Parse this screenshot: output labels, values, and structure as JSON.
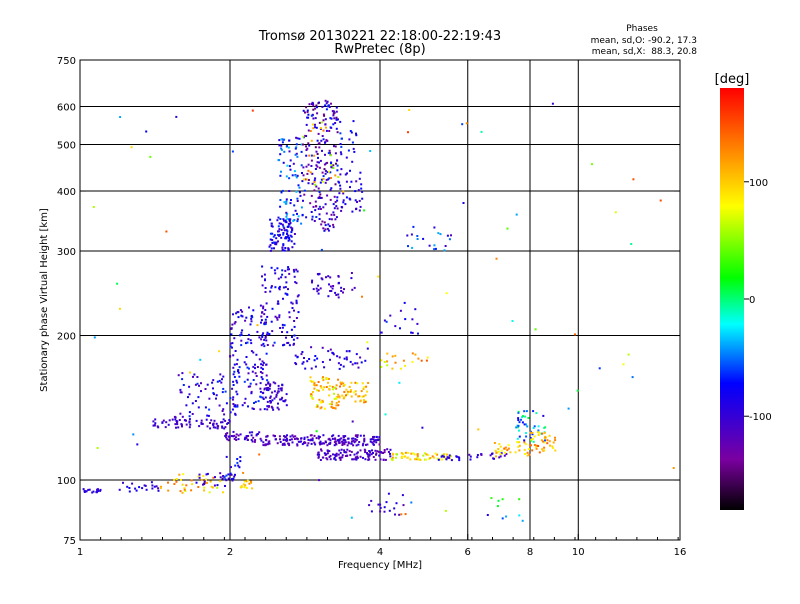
{
  "chart_data": {
    "type": "scatter",
    "title": "Tromsø 20130221 22:18:00-22:19:43",
    "subtitle": "RwPretec (8p)",
    "info": {
      "heading": "Phases",
      "line_o": "mean, sd,O: -90.2, 17.3",
      "line_x": "mean, sd,X:  88.3, 20.8"
    },
    "xlabel": "Frequency [MHz]",
    "ylabel": "Stationary phase Virtual Height [km]",
    "x_scale": "log",
    "y_scale": "log",
    "xlim": [
      1,
      16
    ],
    "ylim": [
      75,
      750
    ],
    "x_ticks": [
      1,
      2,
      4,
      6,
      8,
      10,
      16
    ],
    "x_tick_labels": [
      "1",
      "2",
      "4",
      "6",
      "8",
      "10",
      "16"
    ],
    "x_grid": [
      2,
      4,
      6,
      8,
      10
    ],
    "y_ticks": [
      75,
      100,
      200,
      300,
      400,
      500,
      600,
      750
    ],
    "y_tick_labels": [
      "75",
      "100",
      "200",
      "300",
      "400",
      "500",
      "600",
      "750"
    ],
    "y_grid": [
      100,
      200,
      300,
      400,
      500,
      600
    ],
    "colorbar": {
      "label": "[deg]",
      "range": [
        -180,
        180
      ],
      "ticks": [
        100,
        0,
        -100
      ],
      "tick_labels": [
        "100",
        "0",
        "-100"
      ]
    },
    "clusters": [
      {
        "x": [
          1.0,
          1.1
        ],
        "y": [
          94,
          96
        ],
        "phase": [
          -100,
          -90
        ],
        "n": 18
      },
      {
        "x": [
          1.2,
          1.45
        ],
        "y": [
          94,
          99
        ],
        "phase": [
          -110,
          -70
        ],
        "n": 20
      },
      {
        "x": [
          1.45,
          1.95
        ],
        "y": [
          94,
          103
        ],
        "phase": [
          60,
          140
        ],
        "n": 40
      },
      {
        "x": [
          1.7,
          2.05
        ],
        "y": [
          97,
          104
        ],
        "phase": [
          -120,
          -80
        ],
        "n": 25
      },
      {
        "x": [
          1.95,
          2.1
        ],
        "y": [
          100,
          115
        ],
        "phase": [
          -110,
          -60
        ],
        "n": 15
      },
      {
        "x": [
          2.1,
          2.25
        ],
        "y": [
          96,
          100
        ],
        "phase": [
          80,
          150
        ],
        "n": 14
      },
      {
        "x": [
          1.4,
          2.0
        ],
        "y": [
          128,
          134
        ],
        "phase": [
          -120,
          -90
        ],
        "n": 70
      },
      {
        "x": [
          1.55,
          2.1
        ],
        "y": [
          135,
          170
        ],
        "phase": [
          -120,
          -60
        ],
        "n": 70
      },
      {
        "x": [
          1.95,
          2.3
        ],
        "y": [
          120,
          126
        ],
        "phase": [
          -130,
          -90
        ],
        "n": 40
      },
      {
        "x": [
          2.0,
          2.4
        ],
        "y": [
          140,
          230
        ],
        "phase": [
          -120,
          -60
        ],
        "n": 140
      },
      {
        "x": [
          2.3,
          2.6
        ],
        "y": [
          140,
          160
        ],
        "phase": [
          -120,
          -90
        ],
        "n": 60
      },
      {
        "x": [
          2.3,
          2.75
        ],
        "y": [
          190,
          280
        ],
        "phase": [
          -120,
          -60
        ],
        "n": 110
      },
      {
        "x": [
          2.4,
          2.7
        ],
        "y": [
          300,
          350
        ],
        "phase": [
          -110,
          -60
        ],
        "n": 90
      },
      {
        "x": [
          2.5,
          2.8
        ],
        "y": [
          340,
          520
        ],
        "phase": [
          -110,
          -30
        ],
        "n": 90
      },
      {
        "x": [
          2.8,
          3.3
        ],
        "y": [
          330,
          620
        ],
        "phase": [
          -150,
          -60
        ],
        "n": 220
      },
      {
        "x": [
          2.8,
          3.3
        ],
        "y": [
          400,
          560
        ],
        "phase": [
          40,
          140
        ],
        "n": 25
      },
      {
        "x": [
          2.9,
          3.6
        ],
        "y": [
          240,
          270
        ],
        "phase": [
          -120,
          -90
        ],
        "n": 40
      },
      {
        "x": [
          3.3,
          3.7
        ],
        "y": [
          360,
          450
        ],
        "phase": [
          -120,
          -70
        ],
        "n": 40
      },
      {
        "x": [
          3.3,
          3.6
        ],
        "y": [
          460,
          560
        ],
        "phase": [
          -100,
          -60
        ],
        "n": 20
      },
      {
        "x": [
          2.3,
          4.0
        ],
        "y": [
          118,
          124
        ],
        "phase": [
          -130,
          -90
        ],
        "n": 190
      },
      {
        "x": [
          3.0,
          4.2
        ],
        "y": [
          110,
          116
        ],
        "phase": [
          -130,
          -90
        ],
        "n": 110
      },
      {
        "x": [
          4.2,
          5.6
        ],
        "y": [
          110,
          114
        ],
        "phase": [
          50,
          130
        ],
        "n": 60
      },
      {
        "x": [
          5.2,
          5.8
        ],
        "y": [
          110,
          113
        ],
        "phase": [
          -110,
          -80
        ],
        "n": 15
      },
      {
        "x": [
          2.9,
          3.3
        ],
        "y": [
          140,
          165
        ],
        "phase": [
          60,
          140
        ],
        "n": 70
      },
      {
        "x": [
          3.3,
          3.8
        ],
        "y": [
          145,
          160
        ],
        "phase": [
          70,
          140
        ],
        "n": 50
      },
      {
        "x": [
          2.7,
          3.8
        ],
        "y": [
          170,
          190
        ],
        "phase": [
          -120,
          -70
        ],
        "n": 50
      },
      {
        "x": [
          4.0,
          5.0
        ],
        "y": [
          170,
          185
        ],
        "phase": [
          60,
          150
        ],
        "n": 20
      },
      {
        "x": [
          4.0,
          4.8
        ],
        "y": [
          190,
          230
        ],
        "phase": [
          -110,
          -60
        ],
        "n": 15
      },
      {
        "x": [
          4.5,
          5.6
        ],
        "y": [
          300,
          340
        ],
        "phase": [
          -120,
          -30
        ],
        "n": 20
      },
      {
        "x": [
          6.0,
          7.2
        ],
        "y": [
          110,
          114
        ],
        "phase": [
          -120,
          -90
        ],
        "n": 18
      },
      {
        "x": [
          6.8,
          8.0
        ],
        "y": [
          112,
          120
        ],
        "phase": [
          70,
          140
        ],
        "n": 35
      },
      {
        "x": [
          7.5,
          8.6
        ],
        "y": [
          120,
          140
        ],
        "phase": [
          -90,
          10
        ],
        "n": 45
      },
      {
        "x": [
          8.0,
          9.0
        ],
        "y": [
          114,
          126
        ],
        "phase": [
          80,
          150
        ],
        "n": 40
      },
      {
        "x": [
          3.8,
          4.5
        ],
        "y": [
          84,
          95
        ],
        "phase": [
          -120,
          -80
        ],
        "n": 18
      },
      {
        "x": [
          6.5,
          7.8
        ],
        "y": [
          80,
          92
        ],
        "phase": [
          -110,
          40
        ],
        "n": 10
      },
      {
        "x": [
          1.0,
          16.0
        ],
        "y": [
          80,
          620
        ],
        "phase": [
          -120,
          160
        ],
        "n": 70
      }
    ]
  }
}
